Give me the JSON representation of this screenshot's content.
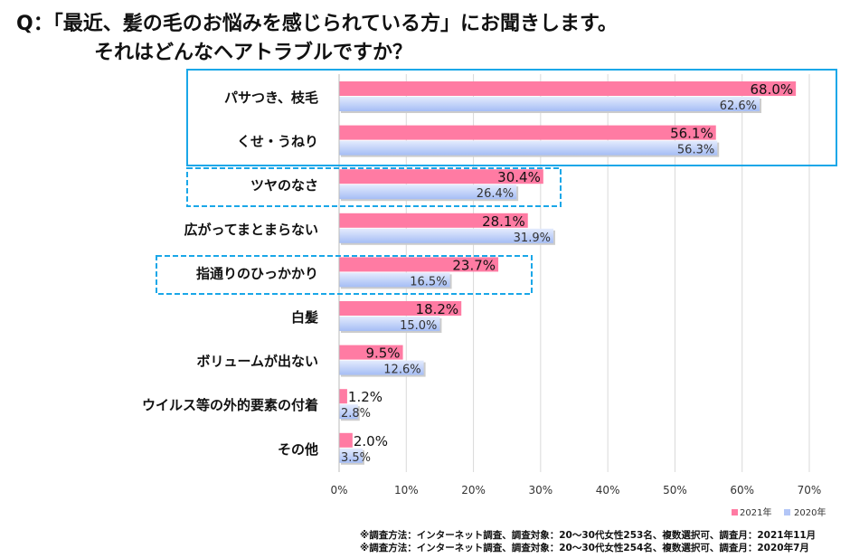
{
  "title": {
    "line1": "Q：「最近、髪の毛のお悩みを感じられている方」にお聞きします。",
    "line2": "それはどんなヘアトラブルですか？"
  },
  "chart_data": {
    "type": "bar",
    "orientation": "horizontal",
    "categories": [
      "パサつき、枝毛",
      "くせ・うねり",
      "ツヤのなさ",
      "広がってまとまらない",
      "指通りのひっかかり",
      "白髪",
      "ボリュームが出ない",
      "ウイルス等の外的要素の付着",
      "その他"
    ],
    "series": [
      {
        "name": "2021年",
        "color": "#FF7BA3",
        "values": [
          68.0,
          56.1,
          30.4,
          28.1,
          23.7,
          18.2,
          9.5,
          1.2,
          2.0
        ],
        "labels": [
          "68.0%",
          "56.1%",
          "30.4%",
          "28.1%",
          "23.7%",
          "18.2%",
          "9.5%",
          "1.2%",
          "2.0%"
        ]
      },
      {
        "name": "2020年",
        "color": "#B3C6F7",
        "values": [
          62.6,
          56.3,
          26.4,
          31.9,
          16.5,
          15.0,
          12.6,
          2.8,
          3.5
        ],
        "labels": [
          "62.6%",
          "56.3%",
          "26.4%",
          "31.9%",
          "16.5%",
          "15.0%",
          "12.6%",
          "2.8%",
          "3.5%"
        ]
      }
    ],
    "xlim": [
      0,
      70
    ],
    "xticks": [
      "0%",
      "10%",
      "20%",
      "30%",
      "40%",
      "50%",
      "60%",
      "70%"
    ],
    "grid": true,
    "legend": "bottom-right",
    "highlight_color": "#1AA7E8"
  },
  "notes": [
    "※調査方法：インターネット調査、調査対象：20～30代女性253名、複数選択可、調査月：2021年11月",
    "※調査方法：インターネット調査、調査対象：20～30代女性254名、複数選択可、調査月：2020年7月"
  ]
}
